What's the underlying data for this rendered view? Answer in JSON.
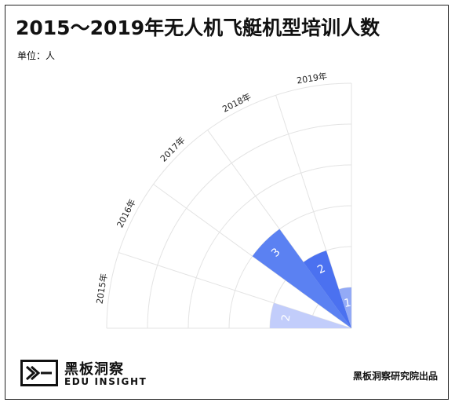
{
  "title": "2015～2019年无人机飞艇机型培训人数",
  "unit_label": "单位：人",
  "chart_data": {
    "type": "bar",
    "layout": "radial-quarter",
    "categories": [
      "2015年",
      "2016年",
      "2017年",
      "2018年",
      "2019年"
    ],
    "values": [
      2,
      0,
      3,
      2,
      1
    ],
    "rmax": 5,
    "grid": true,
    "colors": [
      "#c2cdfb",
      "#5b81f2",
      "#5b81f2",
      "#4b71f0",
      "#93aaf6"
    ]
  },
  "brand": {
    "name_cn": "黑板洞察",
    "name_en": "EDU INSIGHT"
  },
  "credit": "黑板洞察研究院出品"
}
